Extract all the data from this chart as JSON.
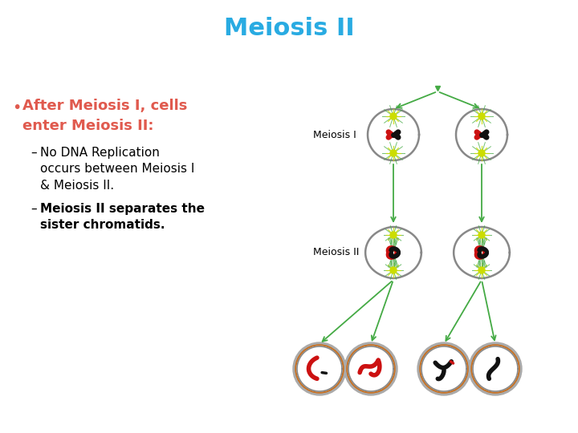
{
  "title": "Meiosis II",
  "title_color": "#29ABE2",
  "title_fontsize": 22,
  "title_fontweight": "bold",
  "bg_color": "#FFFFFF",
  "bullet_text": "After Meiosis I, cells\nenter Meiosis II:",
  "bullet_color": "#E05A4E",
  "bullet_fontsize": 13,
  "bullet_fontweight": "bold",
  "sub_bullet1_text": "No DNA Replication\noccurs between Meiosis I\n& Meiosis II.",
  "sub_bullet2_text": "Meiosis II separates the\nsister chromatids.",
  "sub_fontsize": 11,
  "label_meiosis1": "Meiosis I",
  "label_meiosis2": "Meiosis II",
  "label_fontsize": 9,
  "arrow_color": "#44AA44",
  "cell_outline_color": "#888888",
  "star_color": "#CCDD00",
  "spindle_color": "#44AA44",
  "red_chrom": "#CC1111",
  "black_chrom": "#111111",
  "inner_ring_color": "#C87020",
  "cell_bg_color": "#FFFFFF"
}
